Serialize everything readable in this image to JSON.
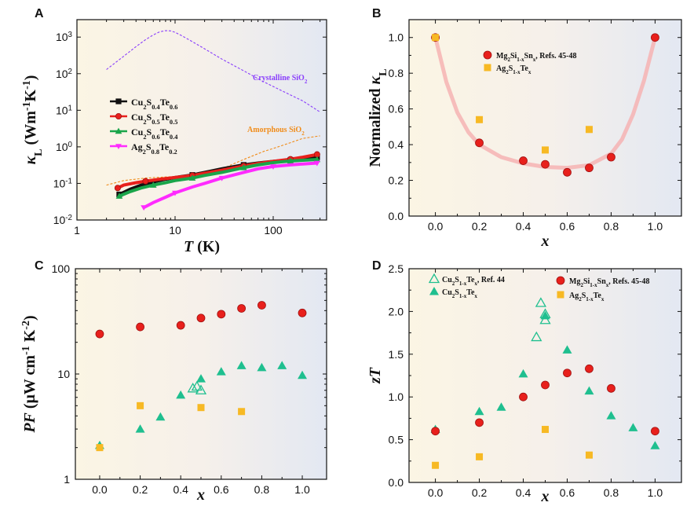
{
  "colors": {
    "purple": "#8a3ffc",
    "orange": "#f08c1a",
    "black": "#111111",
    "red": "#e8201c",
    "green": "#1aa54a",
    "magenta": "#ff2bff",
    "teal": "#1fbf8f",
    "gold": "#f7b924",
    "pink_curve": "#f6b3b3"
  },
  "chart_data": [
    {
      "panel": "A",
      "type": "line",
      "xlabel_var": "T",
      "xlabel_unit": " (K)",
      "ylabel_sym": "κ",
      "ylabel_sub": "L",
      "ylabel_unit": " (Wm",
      "ylabel_unit_sup1": "-1",
      "ylabel_unit_mid": "K",
      "ylabel_unit_sup2": "-1",
      "ylabel_unit_end": ")",
      "xscale": "log",
      "yscale": "log",
      "xlim": [
        1,
        350
      ],
      "ylim": [
        0.01,
        3000
      ],
      "xticks": [
        {
          "v": 1,
          "label": "1"
        },
        {
          "v": 10,
          "label": "10"
        },
        {
          "v": 100,
          "label": "100"
        }
      ],
      "yticks": [
        {
          "v": 0.01,
          "base": "10",
          "exp": "-2"
        },
        {
          "v": 0.1,
          "base": "10",
          "exp": "-1"
        },
        {
          "v": 1,
          "base": "10",
          "exp": "0"
        },
        {
          "v": 10,
          "base": "10",
          "exp": "1"
        },
        {
          "v": 100,
          "base": "10",
          "exp": "2"
        },
        {
          "v": 1000,
          "base": "10",
          "exp": "3"
        }
      ],
      "annotations": [
        {
          "text": "Crystalline SiO",
          "sub": "2",
          "color": "#8a3ffc"
        },
        {
          "text": "Amorphous SiO",
          "sub": "2",
          "color": "#f08c1a"
        }
      ],
      "series": [
        {
          "name": "Crystalline SiO2",
          "style": "dash",
          "color": "#8a3ffc",
          "x": [
            2,
            3,
            4,
            5,
            6,
            7,
            8,
            9,
            10,
            12,
            15,
            20,
            30,
            50,
            80,
            120,
            200,
            300
          ],
          "y": [
            130,
            300,
            550,
            850,
            1150,
            1400,
            1500,
            1480,
            1350,
            1050,
            750,
            480,
            250,
            120,
            60,
            35,
            18,
            9
          ]
        },
        {
          "name": "Amorphous SiO2",
          "style": "dash",
          "color": "#f08c1a",
          "x": [
            2,
            3,
            5,
            8,
            10,
            15,
            20,
            30,
            50,
            80,
            100,
            150,
            200,
            300
          ],
          "y": [
            0.09,
            0.12,
            0.14,
            0.15,
            0.155,
            0.17,
            0.19,
            0.25,
            0.45,
            0.75,
            0.9,
            1.3,
            1.7,
            2.0
          ]
        },
        {
          "label_main": "Cu",
          "label_sub1": "2",
          "label_mid": "S",
          "label_sub2": "0.4",
          "label_end": "Te",
          "label_sub3": "0.6",
          "marker": "square",
          "color": "#111111",
          "x": [
            2.7,
            3.5,
            4.5,
            6,
            8,
            10,
            15,
            20,
            30,
            50,
            70,
            100,
            150,
            200,
            280
          ],
          "y": [
            0.05,
            0.07,
            0.09,
            0.11,
            0.13,
            0.145,
            0.17,
            0.2,
            0.25,
            0.32,
            0.36,
            0.4,
            0.44,
            0.47,
            0.52
          ]
        },
        {
          "label_main": "Cu",
          "label_sub1": "2",
          "label_mid": "S",
          "label_sub2": "0.5",
          "label_end": "Te",
          "label_sub3": "0.5",
          "marker": "circle",
          "color": "#e8201c",
          "x": [
            2.6,
            3,
            4,
            5,
            7,
            10,
            15,
            20,
            30,
            50,
            70,
            100,
            150,
            200,
            280
          ],
          "y": [
            0.075,
            0.09,
            0.105,
            0.115,
            0.13,
            0.145,
            0.165,
            0.19,
            0.23,
            0.3,
            0.35,
            0.4,
            0.46,
            0.52,
            0.62
          ]
        },
        {
          "label_main": "Cu",
          "label_sub1": "2",
          "label_mid": "S",
          "label_sub2": "0.6",
          "label_end": "Te",
          "label_sub3": "0.4",
          "marker": "triangle",
          "color": "#1aa54a",
          "x": [
            2.7,
            3.5,
            4.5,
            6,
            8,
            10,
            15,
            20,
            30,
            50,
            70,
            100,
            150,
            200,
            280
          ],
          "y": [
            0.045,
            0.06,
            0.075,
            0.09,
            0.105,
            0.12,
            0.14,
            0.165,
            0.2,
            0.27,
            0.32,
            0.37,
            0.41,
            0.43,
            0.45
          ]
        },
        {
          "label_main": "Ag",
          "label_sub1": "2",
          "label_mid": "S",
          "label_sub2": "0.8",
          "label_end": "Te",
          "label_sub3": "0.2",
          "marker": "down",
          "color": "#ff2bff",
          "x": [
            4.8,
            6,
            8,
            10,
            15,
            20,
            30,
            50,
            70,
            100,
            150,
            200,
            280
          ],
          "y": [
            0.022,
            0.03,
            0.042,
            0.055,
            0.08,
            0.1,
            0.14,
            0.2,
            0.25,
            0.29,
            0.32,
            0.34,
            0.36
          ]
        }
      ]
    },
    {
      "panel": "B",
      "type": "scatter",
      "xlabel_var": "x",
      "ylabel_pre": "Normalized ",
      "ylabel_sym": "κ",
      "ylabel_sub": "L",
      "xlim": [
        -0.12,
        1.12
      ],
      "ylim": [
        0,
        1.1
      ],
      "xticks": [
        "0.0",
        "0.2",
        "0.4",
        "0.6",
        "0.8",
        "1.0"
      ],
      "yticks": [
        "0.0",
        "0.2",
        "0.4",
        "0.6",
        "0.8",
        "1.0"
      ],
      "series": [
        {
          "label_main": "Mg",
          "label_sub1": "2",
          "label_mid": "Si",
          "label_sub2": "1-x",
          "label_mid2": "Sn",
          "label_sub3": "x",
          "label_end": ", Refs. 45-48",
          "marker": "circle",
          "color": "#e8201c",
          "x": [
            0.0,
            0.2,
            0.4,
            0.5,
            0.6,
            0.7,
            0.8,
            1.0
          ],
          "y": [
            1.0,
            0.41,
            0.31,
            0.29,
            0.245,
            0.27,
            0.33,
            1.0
          ]
        },
        {
          "label_main": "Ag",
          "label_sub1": "2",
          "label_mid": "S",
          "label_sub2": "1-x",
          "label_mid2": "Te",
          "label_sub3": "x",
          "label_end": "",
          "marker": "square",
          "color": "#f7b924",
          "x": [
            0.0,
            0.2,
            0.5,
            0.7
          ],
          "y": [
            1.0,
            0.54,
            0.37,
            0.485
          ]
        },
        {
          "name": "guide",
          "style": "curve",
          "color": "#f6b3b3",
          "x": [
            0.0,
            0.05,
            0.1,
            0.15,
            0.2,
            0.3,
            0.4,
            0.5,
            0.6,
            0.7,
            0.8,
            0.85,
            0.9,
            0.95,
            1.0
          ],
          "y": [
            1.0,
            0.75,
            0.58,
            0.47,
            0.4,
            0.33,
            0.295,
            0.275,
            0.27,
            0.285,
            0.35,
            0.43,
            0.57,
            0.76,
            1.0
          ]
        }
      ]
    },
    {
      "panel": "C",
      "type": "scatter",
      "xlabel_var": "x",
      "ylabel_var": "PF",
      "ylabel_unit": " (μW cm",
      "ylabel_unit_sup1": "-1",
      "ylabel_unit_mid": " K",
      "ylabel_unit_sup2": "-2",
      "ylabel_unit_end": ")",
      "yscale": "log",
      "xlim": [
        -0.12,
        1.12
      ],
      "ylim": [
        1,
        100
      ],
      "xticks": [
        "0.0",
        "0.2",
        "0.4",
        "0.6",
        "0.8",
        "1.0"
      ],
      "yticks": [
        {
          "v": 1,
          "label": "1"
        },
        {
          "v": 10,
          "label": "10"
        },
        {
          "v": 100,
          "label": "100"
        }
      ],
      "series": [
        {
          "name": "Mg2Si1-xSnx",
          "marker": "circle",
          "color": "#e8201c",
          "x": [
            0.0,
            0.2,
            0.4,
            0.5,
            0.6,
            0.7,
            0.8,
            1.0
          ],
          "y": [
            24,
            28,
            29,
            34,
            37,
            42,
            45,
            38
          ]
        },
        {
          "name": "Cu2S1-xTex",
          "marker": "triangle",
          "color": "#1fbf8f",
          "x": [
            0.0,
            0.2,
            0.3,
            0.4,
            0.5,
            0.6,
            0.7,
            0.8,
            0.9,
            1.0
          ],
          "y": [
            2.1,
            3.0,
            3.9,
            6.3,
            9.0,
            10.5,
            12.0,
            11.5,
            12.0,
            9.7
          ]
        },
        {
          "name": "Cu2S1-xTex Ref. 44",
          "marker": "triangle-open",
          "color": "#1fbf8f",
          "x": [
            0.46,
            0.48,
            0.5
          ],
          "y": [
            7.3,
            7.6,
            7.0
          ]
        },
        {
          "name": "Ag2S1-xTex",
          "marker": "square",
          "color": "#f7b924",
          "x": [
            0.0,
            0.2,
            0.5,
            0.7
          ],
          "y": [
            2.0,
            5.0,
            4.8,
            4.4
          ]
        }
      ]
    },
    {
      "panel": "D",
      "type": "scatter",
      "xlabel_var": "x",
      "ylabel_var": "zT",
      "xlim": [
        -0.12,
        1.12
      ],
      "ylim": [
        0,
        2.5
      ],
      "xticks": [
        "0.0",
        "0.2",
        "0.4",
        "0.6",
        "0.8",
        "1.0"
      ],
      "yticks": [
        "0.0",
        "0.5",
        "1.0",
        "1.5",
        "2.0",
        "2.5"
      ],
      "series": [
        {
          "label_main": "Cu",
          "label_sub1": "2",
          "label_mid": "S",
          "label_sub2": "1-x",
          "label_mid2": "Te",
          "label_sub3": "x",
          "label_end": ", Ref. 44",
          "marker": "triangle-open",
          "color": "#1fbf8f",
          "x": [
            0.46,
            0.48,
            0.5,
            0.5
          ],
          "y": [
            1.7,
            2.1,
            1.9,
            1.97
          ]
        },
        {
          "label_main": "Cu",
          "label_sub1": "2",
          "label_mid": "S",
          "label_sub2": "1-x",
          "label_mid2": "Te",
          "label_sub3": "x",
          "label_end": "",
          "marker": "triangle",
          "color": "#1fbf8f",
          "x": [
            0.0,
            0.2,
            0.3,
            0.4,
            0.5,
            0.6,
            0.7,
            0.8,
            0.9,
            1.0
          ],
          "y": [
            0.62,
            0.83,
            0.88,
            1.27,
            1.95,
            1.55,
            1.07,
            0.78,
            0.64,
            0.43
          ]
        },
        {
          "label_main": "Mg",
          "label_sub1": "2",
          "label_mid": "Si",
          "label_sub2": "1-x",
          "label_mid2": "Sn",
          "label_sub3": "x",
          "label_end": ", Refs. 45-48",
          "marker": "circle",
          "color": "#e8201c",
          "x": [
            0.0,
            0.2,
            0.4,
            0.5,
            0.6,
            0.7,
            0.8,
            1.0
          ],
          "y": [
            0.6,
            0.7,
            1.0,
            1.14,
            1.28,
            1.33,
            1.1,
            0.6
          ]
        },
        {
          "label_main": "Ag",
          "label_sub1": "2",
          "label_mid": "S",
          "label_sub2": "1-x",
          "label_mid2": "Te",
          "label_sub3": "x",
          "label_end": "",
          "marker": "square",
          "color": "#f7b924",
          "x": [
            0.0,
            0.2,
            0.5,
            0.7
          ],
          "y": [
            0.2,
            0.3,
            0.62,
            0.32
          ]
        }
      ]
    }
  ]
}
